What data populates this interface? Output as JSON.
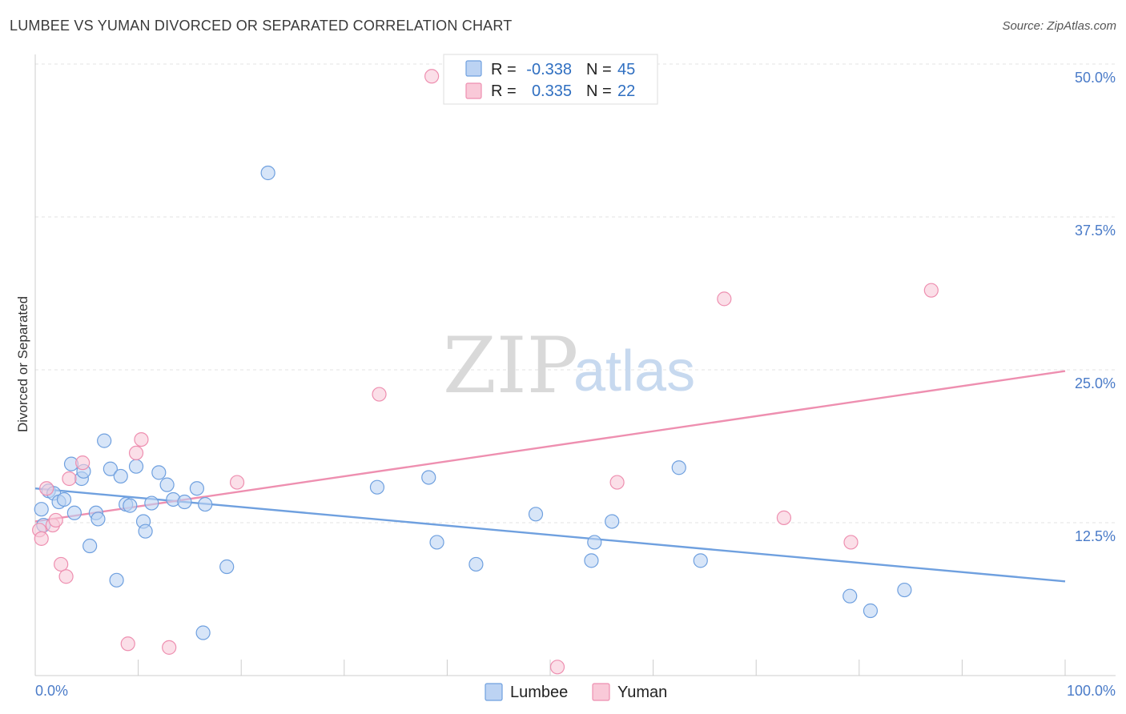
{
  "title": "LUMBEE VS YUMAN DIVORCED OR SEPARATED CORRELATION CHART",
  "source": "Source: ZipAtlas.com",
  "watermark": {
    "zip": "ZIP",
    "atlas": "atlas"
  },
  "chart_data": {
    "type": "scatter",
    "xlabel": "",
    "ylabel": "Divorced or Separated",
    "xlim": [
      0,
      100
    ],
    "ylim": [
      0,
      50
    ],
    "x_tick_labels": {
      "min": "0.0%",
      "max": "100.0%"
    },
    "y_ticks": [
      {
        "value": 12.5,
        "label": "12.5%"
      },
      {
        "value": 25.0,
        "label": "25.0%"
      },
      {
        "value": 37.5,
        "label": "37.5%"
      },
      {
        "value": 50.0,
        "label": "50.0%"
      }
    ],
    "grid": true,
    "legend_position": "bottom-center",
    "stats": [
      {
        "r_label": "R =",
        "r": "-0.338",
        "n_label": "N =",
        "n": "45",
        "color": "#6fa0df"
      },
      {
        "r_label": "R =",
        "r": "0.335",
        "n_label": "N =",
        "n": "22",
        "color": "#ee8fb0"
      }
    ],
    "series": [
      {
        "name": "Lumbee",
        "color": "#6fa0df",
        "fill": "#bcd3f3",
        "trend": {
          "x": [
            0,
            100
          ],
          "y": [
            15.3,
            7.7
          ]
        },
        "points": [
          [
            0.6,
            13.6
          ],
          [
            0.8,
            12.3
          ],
          [
            1.3,
            15.1
          ],
          [
            1.8,
            14.9
          ],
          [
            2.3,
            14.2
          ],
          [
            2.8,
            14.4
          ],
          [
            3.5,
            17.3
          ],
          [
            3.8,
            13.3
          ],
          [
            4.5,
            16.1
          ],
          [
            4.7,
            16.7
          ],
          [
            5.3,
            10.6
          ],
          [
            5.9,
            13.3
          ],
          [
            6.1,
            12.8
          ],
          [
            6.7,
            19.2
          ],
          [
            7.3,
            16.9
          ],
          [
            7.9,
            7.8
          ],
          [
            8.3,
            16.3
          ],
          [
            8.8,
            14.0
          ],
          [
            9.2,
            13.9
          ],
          [
            9.8,
            17.1
          ],
          [
            10.5,
            12.6
          ],
          [
            10.7,
            11.8
          ],
          [
            11.3,
            14.1
          ],
          [
            12.0,
            16.6
          ],
          [
            12.8,
            15.6
          ],
          [
            13.4,
            14.4
          ],
          [
            14.5,
            14.2
          ],
          [
            15.7,
            15.3
          ],
          [
            16.3,
            3.5
          ],
          [
            16.5,
            14.0
          ],
          [
            18.6,
            8.9
          ],
          [
            22.6,
            41.1
          ],
          [
            33.2,
            15.4
          ],
          [
            38.2,
            16.2
          ],
          [
            39.0,
            10.9
          ],
          [
            42.8,
            9.1
          ],
          [
            48.6,
            13.2
          ],
          [
            54.0,
            9.4
          ],
          [
            54.3,
            10.9
          ],
          [
            56.0,
            12.6
          ],
          [
            62.5,
            17.0
          ],
          [
            64.6,
            9.4
          ],
          [
            79.1,
            6.5
          ],
          [
            81.1,
            5.3
          ],
          [
            84.4,
            7.0
          ]
        ]
      },
      {
        "name": "Yuman",
        "color": "#ee8fb0",
        "fill": "#f9c9d8",
        "trend": {
          "x": [
            0,
            100
          ],
          "y": [
            12.6,
            24.9
          ]
        },
        "points": [
          [
            0.4,
            11.9
          ],
          [
            0.6,
            11.2
          ],
          [
            1.1,
            15.3
          ],
          [
            1.7,
            12.3
          ],
          [
            2.0,
            12.7
          ],
          [
            2.5,
            9.1
          ],
          [
            3.0,
            8.1
          ],
          [
            3.3,
            16.1
          ],
          [
            4.6,
            17.4
          ],
          [
            9.0,
            2.6
          ],
          [
            9.8,
            18.2
          ],
          [
            10.3,
            19.3
          ],
          [
            13.0,
            2.3
          ],
          [
            19.6,
            15.8
          ],
          [
            33.4,
            23.0
          ],
          [
            38.5,
            49.0
          ],
          [
            50.7,
            0.7
          ],
          [
            56.5,
            15.8
          ],
          [
            66.9,
            30.8
          ],
          [
            72.7,
            12.9
          ],
          [
            79.2,
            10.9
          ],
          [
            87.0,
            31.5
          ]
        ]
      }
    ]
  }
}
